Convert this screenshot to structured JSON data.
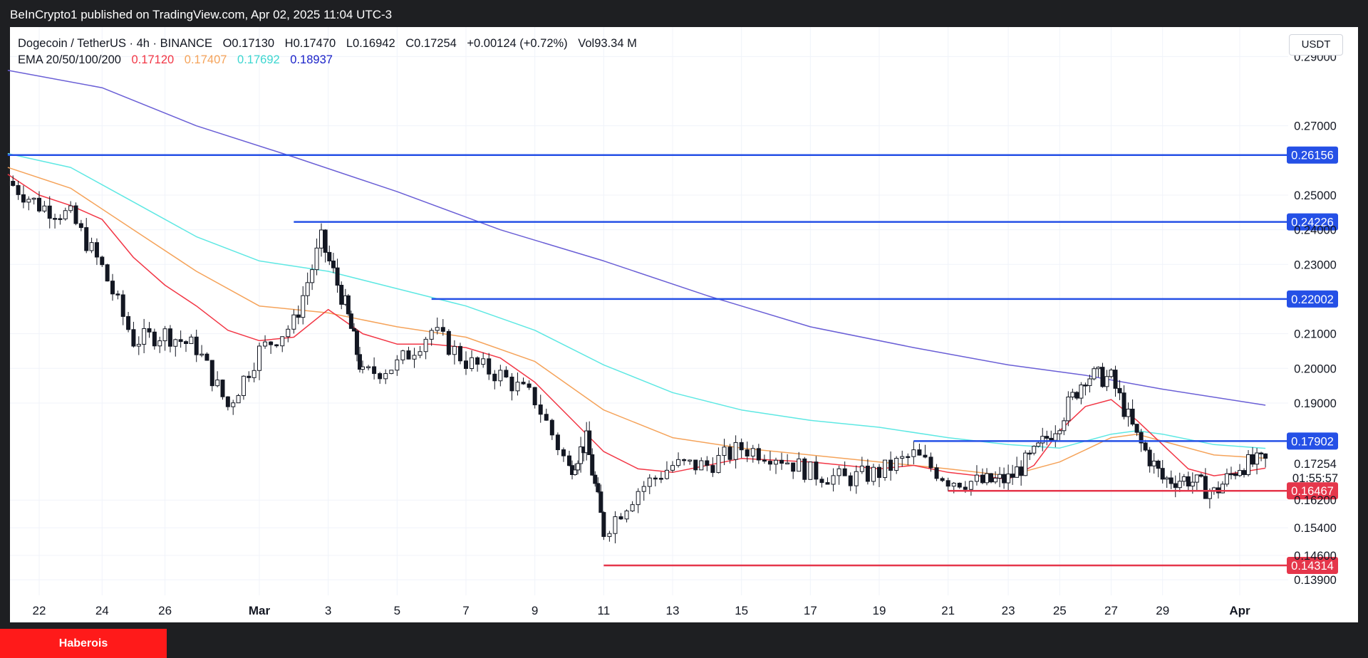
{
  "header": {
    "published": "BeInCrypto1 published on TradingView.com, Apr 02, 2025 11:04 UTC-3"
  },
  "legend": {
    "symbol": "Dogecoin / TetherUS · 4h · BINANCE",
    "open": "O0.17130",
    "high": "H0.17470",
    "low": "L0.16942",
    "close": "C0.17254",
    "change": "+0.00124 (+0.72%)",
    "volume": "Vol93.34 M",
    "ema_label": "EMA 20/50/100/200",
    "ema_values": [
      "0.17120",
      "0.17407",
      "0.17692",
      "0.18937"
    ]
  },
  "unit_button": "USDT",
  "footer": {
    "badge": "Haberois"
  },
  "colors": {
    "ema20": "#f23645",
    "ema50": "#f5a35a",
    "ema100": "#5ee8e3",
    "ema200": "#6a5fd6",
    "resistance": "#2550e6",
    "support": "#e5364b",
    "up": "#ffffff",
    "down": "#131722"
  },
  "chart_data": {
    "type": "candlestick",
    "symbol": "Dogecoin / TetherUS",
    "interval": "4h",
    "exchange": "BINANCE",
    "ylim": [
      0.1345,
      0.2985
    ],
    "y_ticks": [
      "0.29000",
      "0.27000",
      "0.25000",
      "0.24000",
      "0.23000",
      "0.21000",
      "0.20000",
      "0.19000",
      "0.17254",
      "0.16200",
      "0.15400",
      "0.14600",
      "0.13900"
    ],
    "x_ticks": [
      "22",
      "24",
      "26",
      "Mar",
      "3",
      "5",
      "7",
      "9",
      "11",
      "13",
      "15",
      "17",
      "19",
      "21",
      "23",
      "25",
      "27",
      "29",
      "Apr"
    ],
    "countdown": "01:55:57",
    "last_price": {
      "value": 0.17254,
      "label": "0.17254"
    },
    "levels": [
      {
        "value": 0.26156,
        "label": "0.26156",
        "kind": "resistance",
        "start_date": "Feb 21"
      },
      {
        "value": 0.24226,
        "label": "0.24226",
        "kind": "resistance",
        "start_date": "Mar 2"
      },
      {
        "value": 0.22002,
        "label": "0.22002",
        "kind": "resistance",
        "start_date": "Mar 6"
      },
      {
        "value": 0.17902,
        "label": "0.17902",
        "kind": "resistance",
        "start_date": "Mar 20"
      },
      {
        "value": 0.16467,
        "label": "0.16467",
        "kind": "support",
        "start_date": "Mar 21"
      },
      {
        "value": 0.14314,
        "label": "0.14314",
        "kind": "support",
        "start_date": "Mar 11"
      }
    ],
    "price_path": [
      {
        "date": "Feb 21",
        "close": 0.254
      },
      {
        "date": "Feb 22",
        "close": 0.247
      },
      {
        "date": "Feb 23",
        "close": 0.244
      },
      {
        "date": "Feb 24",
        "close": 0.229
      },
      {
        "date": "Feb 25",
        "close": 0.208
      },
      {
        "date": "Feb 26",
        "close": 0.21
      },
      {
        "date": "Feb 27",
        "close": 0.206
      },
      {
        "date": "Feb 28",
        "close": 0.189
      },
      {
        "date": "Mar 1",
        "close": 0.205
      },
      {
        "date": "Mar 2",
        "close": 0.213
      },
      {
        "date": "Mar 2.8",
        "close": 0.237
      },
      {
        "date": "Mar 3.5",
        "close": 0.218
      },
      {
        "date": "Mar 4",
        "close": 0.198
      },
      {
        "date": "Mar 5",
        "close": 0.201
      },
      {
        "date": "Mar 6",
        "close": 0.211
      },
      {
        "date": "Mar 7",
        "close": 0.202
      },
      {
        "date": "Mar 8",
        "close": 0.198
      },
      {
        "date": "Mar 9",
        "close": 0.191
      },
      {
        "date": "Mar 10",
        "close": 0.171
      },
      {
        "date": "Mar 10.5",
        "close": 0.179
      },
      {
        "date": "Mar 11",
        "close": 0.153
      },
      {
        "date": "Mar 12",
        "close": 0.165
      },
      {
        "date": "Mar 13",
        "close": 0.172
      },
      {
        "date": "Mar 14",
        "close": 0.172
      },
      {
        "date": "Mar 15",
        "close": 0.177
      },
      {
        "date": "Mar 16",
        "close": 0.175
      },
      {
        "date": "Mar 17",
        "close": 0.17
      },
      {
        "date": "Mar 18",
        "close": 0.168
      },
      {
        "date": "Mar 19",
        "close": 0.17
      },
      {
        "date": "Mar 20",
        "close": 0.175
      },
      {
        "date": "Mar 21",
        "close": 0.168
      },
      {
        "date": "Mar 22",
        "close": 0.167
      },
      {
        "date": "Mar 23",
        "close": 0.168
      },
      {
        "date": "Mar 24",
        "close": 0.175
      },
      {
        "date": "Mar 25",
        "close": 0.185
      },
      {
        "date": "Mar 26",
        "close": 0.198
      },
      {
        "date": "Mar 27",
        "close": 0.197
      },
      {
        "date": "Mar 28",
        "close": 0.18
      },
      {
        "date": "Mar 29",
        "close": 0.168
      },
      {
        "date": "Mar 30",
        "close": 0.168
      },
      {
        "date": "Mar 31",
        "close": 0.164
      },
      {
        "date": "Apr 1",
        "close": 0.172
      },
      {
        "date": "Apr 2",
        "close": 0.173
      }
    ],
    "ema20": [
      {
        "date": "Feb 21",
        "value": 0.256
      },
      {
        "date": "Feb 22",
        "value": 0.25
      },
      {
        "date": "Feb 23",
        "value": 0.247
      },
      {
        "date": "Feb 24",
        "value": 0.243
      },
      {
        "date": "Feb 25",
        "value": 0.232
      },
      {
        "date": "Feb 26",
        "value": 0.224
      },
      {
        "date": "Feb 27",
        "value": 0.218
      },
      {
        "date": "Feb 28",
        "value": 0.211
      },
      {
        "date": "Mar 1",
        "value": 0.208
      },
      {
        "date": "Mar 2",
        "value": 0.209
      },
      {
        "date": "Mar 3",
        "value": 0.217
      },
      {
        "date": "Mar 4",
        "value": 0.21
      },
      {
        "date": "Mar 5",
        "value": 0.207
      },
      {
        "date": "Mar 6",
        "value": 0.207
      },
      {
        "date": "Mar 7",
        "value": 0.206
      },
      {
        "date": "Mar 8",
        "value": 0.203
      },
      {
        "date": "Mar 9",
        "value": 0.196
      },
      {
        "date": "Mar 10",
        "value": 0.186
      },
      {
        "date": "Mar 11",
        "value": 0.176
      },
      {
        "date": "Mar 12",
        "value": 0.171
      },
      {
        "date": "Mar 13",
        "value": 0.17
      },
      {
        "date": "Mar 15",
        "value": 0.174
      },
      {
        "date": "Mar 17",
        "value": 0.173
      },
      {
        "date": "Mar 19",
        "value": 0.171
      },
      {
        "date": "Mar 20",
        "value": 0.172
      },
      {
        "date": "Mar 21",
        "value": 0.17
      },
      {
        "date": "Mar 23",
        "value": 0.168
      },
      {
        "date": "Mar 24",
        "value": 0.172
      },
      {
        "date": "Mar 25",
        "value": 0.182
      },
      {
        "date": "Mar 26",
        "value": 0.189
      },
      {
        "date": "Mar 27",
        "value": 0.191
      },
      {
        "date": "Mar 28",
        "value": 0.185
      },
      {
        "date": "Mar 29",
        "value": 0.178
      },
      {
        "date": "Mar 30",
        "value": 0.171
      },
      {
        "date": "Mar 31",
        "value": 0.169
      },
      {
        "date": "Apr 1",
        "value": 0.17
      },
      {
        "date": "Apr 2",
        "value": 0.1712
      }
    ],
    "ema50": [
      {
        "date": "Feb 21",
        "value": 0.258
      },
      {
        "date": "Feb 23",
        "value": 0.252
      },
      {
        "date": "Feb 25",
        "value": 0.24
      },
      {
        "date": "Feb 27",
        "value": 0.228
      },
      {
        "date": "Mar 1",
        "value": 0.218
      },
      {
        "date": "Mar 3",
        "value": 0.216
      },
      {
        "date": "Mar 5",
        "value": 0.212
      },
      {
        "date": "Mar 7",
        "value": 0.209
      },
      {
        "date": "Mar 9",
        "value": 0.202
      },
      {
        "date": "Mar 11",
        "value": 0.188
      },
      {
        "date": "Mar 13",
        "value": 0.18
      },
      {
        "date": "Mar 15",
        "value": 0.177
      },
      {
        "date": "Mar 17",
        "value": 0.175
      },
      {
        "date": "Mar 19",
        "value": 0.173
      },
      {
        "date": "Mar 21",
        "value": 0.171
      },
      {
        "date": "Mar 23",
        "value": 0.169
      },
      {
        "date": "Mar 25",
        "value": 0.173
      },
      {
        "date": "Mar 27",
        "value": 0.18
      },
      {
        "date": "Mar 28",
        "value": 0.181
      },
      {
        "date": "Mar 29",
        "value": 0.179
      },
      {
        "date": "Mar 31",
        "value": 0.175
      },
      {
        "date": "Apr 2",
        "value": 0.17407
      }
    ],
    "ema100": [
      {
        "date": "Feb 21",
        "value": 0.262
      },
      {
        "date": "Feb 23",
        "value": 0.258
      },
      {
        "date": "Feb 25",
        "value": 0.248
      },
      {
        "date": "Feb 27",
        "value": 0.238
      },
      {
        "date": "Mar 1",
        "value": 0.231
      },
      {
        "date": "Mar 3",
        "value": 0.228
      },
      {
        "date": "Mar 5",
        "value": 0.223
      },
      {
        "date": "Mar 7",
        "value": 0.218
      },
      {
        "date": "Mar 9",
        "value": 0.211
      },
      {
        "date": "Mar 11",
        "value": 0.201
      },
      {
        "date": "Mar 13",
        "value": 0.193
      },
      {
        "date": "Mar 15",
        "value": 0.188
      },
      {
        "date": "Mar 17",
        "value": 0.185
      },
      {
        "date": "Mar 19",
        "value": 0.183
      },
      {
        "date": "Mar 21",
        "value": 0.18
      },
      {
        "date": "Mar 23",
        "value": 0.178
      },
      {
        "date": "Mar 25",
        "value": 0.177
      },
      {
        "date": "Mar 27",
        "value": 0.181
      },
      {
        "date": "Mar 28",
        "value": 0.182
      },
      {
        "date": "Mar 29",
        "value": 0.181
      },
      {
        "date": "Mar 31",
        "value": 0.178
      },
      {
        "date": "Apr 2",
        "value": 0.17692
      }
    ],
    "ema200": [
      {
        "date": "Feb 21",
        "value": 0.286
      },
      {
        "date": "Feb 24",
        "value": 0.281
      },
      {
        "date": "Feb 27",
        "value": 0.27
      },
      {
        "date": "Mar 2",
        "value": 0.261
      },
      {
        "date": "Mar 5",
        "value": 0.251
      },
      {
        "date": "Mar 8",
        "value": 0.24
      },
      {
        "date": "Mar 11",
        "value": 0.231
      },
      {
        "date": "Mar 14",
        "value": 0.221
      },
      {
        "date": "Mar 17",
        "value": 0.212
      },
      {
        "date": "Mar 20",
        "value": 0.206
      },
      {
        "date": "Mar 23",
        "value": 0.201
      },
      {
        "date": "Mar 26",
        "value": 0.198
      },
      {
        "date": "Mar 29",
        "value": 0.194
      },
      {
        "date": "Apr 2",
        "value": 0.18937
      }
    ]
  }
}
